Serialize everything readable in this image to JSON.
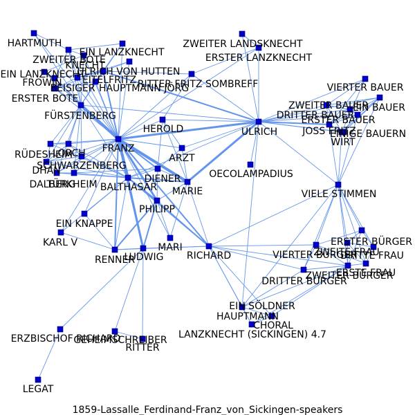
{
  "caption": "1859-Lassalle_Ferdinand-Franz_von_Sickingen-speakers",
  "colors": {
    "node": "#0000cd",
    "edge": "#6495ed",
    "label": "#000000"
  },
  "nodes": [
    {
      "id": "HARTMUTH",
      "label": "HARTMUTH"
    },
    {
      "id": "ZWEITER_BOTE",
      "label": "ZWEITER BOTE"
    },
    {
      "id": "EIN_LANZKNECHT",
      "label": "EIN LANZKNECHT"
    },
    {
      "id": "KNECHT",
      "label": "KNECHT"
    },
    {
      "id": "EIN_LANZKNECHT2",
      "label": "EIN LANZKNECHT"
    },
    {
      "id": "ULRICH_VON_HUTTEN",
      "label": "ULRICH VON HUTTEN"
    },
    {
      "id": "FROWIN",
      "label": "FROWIN"
    },
    {
      "id": "EITELFRITZ",
      "label": "EITELFRITZ"
    },
    {
      "id": "BEISIGER",
      "label": "BEISIGER"
    },
    {
      "id": "HAUPTMANN_JORG",
      "label": "HAUPTMANN JÖRG"
    },
    {
      "id": "RITTER_FRITZ_SOMBREFF",
      "label": "RITTER FRITZ SOMBREFF"
    },
    {
      "id": "ERSTER_BOTE",
      "label": "ERSTER BOTE"
    },
    {
      "id": "FURSTENBERG",
      "label": "FÜRSTENBERG"
    },
    {
      "id": "ZWEITER_LANDSKNECHT",
      "label": "ZWEITER LANDSKNECHT"
    },
    {
      "id": "ERSTER_LANZKNECHT",
      "label": "ERSTER LANZKNECHT"
    },
    {
      "id": "HEROLD",
      "label": "HEROLD"
    },
    {
      "id": "ULRICH",
      "label": "ULRICH"
    },
    {
      "id": "FRANZ",
      "label": "FRANZ"
    },
    {
      "id": "ARZT",
      "label": "ARZT"
    },
    {
      "id": "RUDESHEIM",
      "label": "RÜDESHEIM"
    },
    {
      "id": "LORCH",
      "label": "LORCH"
    },
    {
      "id": "SCHWARZENBERG",
      "label": "SCHWARZENBERG"
    },
    {
      "id": "DHAN",
      "label": "DHAN"
    },
    {
      "id": "DALBERG",
      "label": "DALBERG"
    },
    {
      "id": "TURKHEIM",
      "label": "TÜRKHEIM"
    },
    {
      "id": "BALTHASAR",
      "label": "BALTHASAR"
    },
    {
      "id": "DIENER",
      "label": "DIENER"
    },
    {
      "id": "MARIE",
      "label": "MARIE"
    },
    {
      "id": "OECOLAMPADIUS",
      "label": "OECOLAMPADIUS"
    },
    {
      "id": "PHILIPP",
      "label": "PHILIPP"
    },
    {
      "id": "EIN_KNAPPE",
      "label": "EIN KNAPPE"
    },
    {
      "id": "KARL_V",
      "label": "KARL V"
    },
    {
      "id": "MARI",
      "label": "MARI"
    },
    {
      "id": "RENNER",
      "label": "RENNER"
    },
    {
      "id": "LUDWIG",
      "label": "LUDWIG"
    },
    {
      "id": "RICHARD",
      "label": "RICHARD"
    },
    {
      "id": "VIERTER_BAUER",
      "label": "VIERTER BAUER"
    },
    {
      "id": "ZWEITER_BAUER",
      "label": "ZWEITER BAUER"
    },
    {
      "id": "DRITTER_BAUER",
      "label": "DRITTER BAUER"
    },
    {
      "id": "ERSTER_BAUER",
      "label": "ERSTER BAUER"
    },
    {
      "id": "EIN_BAUER",
      "label": "EIN BAUER"
    },
    {
      "id": "JOSS_FRITZ",
      "label": "JOSS FRITZ"
    },
    {
      "id": "EINIGE_BAUERN",
      "label": "EINIGE BAUERN"
    },
    {
      "id": "WIRT",
      "label": "WIRT"
    },
    {
      "id": "VIELE_STIMMEN",
      "label": "VIELE STIMMEN"
    },
    {
      "id": "ERSTER_BURGER",
      "label": "ERSTER BÜRGER"
    },
    {
      "id": "ZWEITE_FRAU",
      "label": "ZWEITE FRAU"
    },
    {
      "id": "VIERTER_BURGER",
      "label": "VIERTER BÜRGER"
    },
    {
      "id": "DRITTE_FRAU",
      "label": "DRITTE FRAU"
    },
    {
      "id": "ERSTE_FRAU",
      "label": "ERSTE FRAU"
    },
    {
      "id": "ZWEITER_BURGER",
      "label": "ZWEITER BÜRGER"
    },
    {
      "id": "DRITTER_BURGER",
      "label": "DRITTER BÜRGER"
    },
    {
      "id": "EIN_SOLDNER",
      "label": "EIN SÖLDNER"
    },
    {
      "id": "HAUPTMANN",
      "label": "HAUPTMANN"
    },
    {
      "id": "CHORAL",
      "label": "CHORAL"
    },
    {
      "id": "LANZKNECHT_SICKINGEN",
      "label": "LANZKNECHT (SICKINGEN) 4.7"
    },
    {
      "id": "ERZBISCHOF_RICHARD",
      "label": "ERZBISCHOF RICHARD"
    },
    {
      "id": "GEHEIMSCHREIBER",
      "label": "GEHEIMSCHREIBER"
    },
    {
      "id": "RITTER",
      "label": "RITTER"
    },
    {
      "id": "LEGAT",
      "label": "LEGAT"
    }
  ],
  "edges": [
    [
      "FRANZ",
      "BALTHASAR",
      4
    ],
    [
      "FRANZ",
      "MARIE",
      4
    ],
    [
      "FRANZ",
      "ULRICH",
      3
    ],
    [
      "FRANZ",
      "FURSTENBERG",
      4
    ],
    [
      "FRANZ",
      "PHILIPP",
      3
    ],
    [
      "FRANZ",
      "LUDWIG",
      3
    ],
    [
      "FRANZ",
      "RICHARD",
      2
    ],
    [
      "FRANZ",
      "DIENER",
      2
    ],
    [
      "FRANZ",
      "RENNER",
      2
    ],
    [
      "FRANZ",
      "ULRICH_VON_HUTTEN",
      2
    ],
    [
      "FRANZ",
      "EIN_LANZKNECHT",
      1
    ],
    [
      "FRANZ",
      "HARTMUTH",
      1
    ],
    [
      "FRANZ",
      "ZWEITER_BOTE",
      1
    ],
    [
      "FRANZ",
      "KNECHT",
      1
    ],
    [
      "FRANZ",
      "EIN_LANZKNECHT2",
      1
    ],
    [
      "FRANZ",
      "FROWIN",
      1
    ],
    [
      "FRANZ",
      "EITELFRITZ",
      1
    ],
    [
      "FRANZ",
      "BEISIGER",
      1
    ],
    [
      "FRANZ",
      "HAUPTMANN_JORG",
      1
    ],
    [
      "FRANZ",
      "RITTER_FRITZ_SOMBREFF",
      1
    ],
    [
      "FRANZ",
      "ERSTER_BOTE",
      1
    ],
    [
      "FRANZ",
      "HEROLD",
      1
    ],
    [
      "FRANZ",
      "ARZT",
      1
    ],
    [
      "FRANZ",
      "RUDESHEIM",
      1
    ],
    [
      "FRANZ",
      "LORCH",
      1
    ],
    [
      "FRANZ",
      "SCHWARZENBERG",
      1
    ],
    [
      "FRANZ",
      "DHAN",
      1
    ],
    [
      "FRANZ",
      "DALBERG",
      1
    ],
    [
      "FRANZ",
      "TURKHEIM",
      1
    ],
    [
      "FRANZ",
      "EIN_KNAPPE",
      1
    ],
    [
      "FRANZ",
      "KARL_V",
      1
    ],
    [
      "FRANZ",
      "MARI",
      1
    ],
    [
      "FRANZ",
      "ERSTER_LANZKNECHT",
      1
    ],
    [
      "BALTHASAR",
      "MARIE",
      2
    ],
    [
      "BALTHASAR",
      "PHILIPP",
      2
    ],
    [
      "BALTHASAR",
      "LUDWIG",
      2
    ],
    [
      "BALTHASAR",
      "ULRICH",
      1
    ],
    [
      "BALTHASAR",
      "RICHARD",
      2
    ],
    [
      "BALTHASAR",
      "DIENER",
      1
    ],
    [
      "BALTHASAR",
      "RENNER",
      1
    ],
    [
      "BALTHASAR",
      "SCHWARZENBERG",
      1
    ],
    [
      "BALTHASAR",
      "LORCH",
      1
    ],
    [
      "BALTHASAR",
      "DHAN",
      1
    ],
    [
      "BALTHASAR",
      "DALBERG",
      1
    ],
    [
      "BALTHASAR",
      "TURKHEIM",
      1
    ],
    [
      "BALTHASAR",
      "RUDESHEIM",
      1
    ],
    [
      "BALTHASAR",
      "EIN_KNAPPE",
      1
    ],
    [
      "BALTHASAR",
      "KARL_V",
      1
    ],
    [
      "MARIE",
      "ULRICH",
      3
    ],
    [
      "MARIE",
      "DIENER",
      1
    ],
    [
      "MARIE",
      "PHILIPP",
      1
    ],
    [
      "MARIE",
      "MARI",
      1
    ],
    [
      "MARIE",
      "ARZT",
      1
    ],
    [
      "MARIE",
      "HEROLD",
      1
    ],
    [
      "MARIE",
      "RICHARD",
      1
    ],
    [
      "PHILIPP",
      "LUDWIG",
      2
    ],
    [
      "PHILIPP",
      "RENNER",
      2
    ],
    [
      "PHILIPP",
      "RICHARD",
      1
    ],
    [
      "PHILIPP",
      "DIENER",
      1
    ],
    [
      "PHILIPP",
      "MARI",
      1
    ],
    [
      "LUDWIG",
      "RICHARD",
      1
    ],
    [
      "LUDWIG",
      "RENNER",
      1
    ],
    [
      "LUDWIG",
      "GEHEIMSCHREIBER",
      1
    ],
    [
      "LUDWIG",
      "RITTER",
      1
    ],
    [
      "LUDWIG",
      "ERZBISCHOF_RICHARD",
      1
    ],
    [
      "RICHARD",
      "VIELE_STIMMEN",
      1
    ],
    [
      "RICHARD",
      "ZWEITER_BURGER",
      1
    ],
    [
      "RICHARD",
      "EIN_SOLDNER",
      1
    ],
    [
      "RICHARD",
      "HAUPTMANN",
      1
    ],
    [
      "RICHARD",
      "CHORAL",
      1
    ],
    [
      "RICHARD",
      "DRITTER_BURGER",
      1
    ],
    [
      "RICHARD",
      "RENNER",
      1
    ],
    [
      "RICHARD",
      "VIERTER_BURGER",
      1
    ],
    [
      "ULRICH",
      "ULRICH_VON_HUTTEN",
      2
    ],
    [
      "ULRICH",
      "FURSTENBERG",
      1
    ],
    [
      "ULRICH",
      "OECOLAMPADIUS",
      1
    ],
    [
      "ULRICH",
      "HEROLD",
      1
    ],
    [
      "ULRICH",
      "ERSTER_LANZKNECHT",
      1
    ],
    [
      "ULRICH",
      "ZWEITER_LANDSKNECHT",
      1
    ],
    [
      "ULRICH",
      "RITTER_FRITZ_SOMBREFF",
      1
    ],
    [
      "ULRICH",
      "VIELE_STIMMEN",
      1
    ],
    [
      "ULRICH",
      "JOSS_FRITZ",
      2
    ],
    [
      "ULRICH",
      "WIRT",
      1
    ],
    [
      "ULRICH",
      "VIERTER_BAUER",
      1
    ],
    [
      "ULRICH",
      "ZWEITER_BAUER",
      1
    ],
    [
      "ULRICH",
      "DRITTER_BAUER",
      1
    ],
    [
      "ULRICH",
      "ERSTER_BAUER",
      1
    ],
    [
      "ULRICH",
      "EIN_BAUER",
      1
    ],
    [
      "ULRICH",
      "EINIGE_BAUERN",
      1
    ],
    [
      "ULRICH",
      "ARZT",
      1
    ],
    [
      "ULRICH",
      "EIN_SOLDNER",
      1
    ],
    [
      "FURSTENBERG",
      "HARTMUTH",
      1
    ],
    [
      "FURSTENBERG",
      "ZWEITER_BOTE",
      1
    ],
    [
      "FURSTENBERG",
      "EIN_LANZKNECHT",
      1
    ],
    [
      "FURSTENBERG",
      "KNECHT",
      1
    ],
    [
      "FURSTENBERG",
      "FROWIN",
      1
    ],
    [
      "FURSTENBERG",
      "EITELFRITZ",
      1
    ],
    [
      "FURSTENBERG",
      "BEISIGER",
      1
    ],
    [
      "FURSTENBERG",
      "ERSTER_BOTE",
      1
    ],
    [
      "FURSTENBERG",
      "ULRICH_VON_HUTTEN",
      1
    ],
    [
      "FURSTENBERG",
      "RUDESHEIM",
      1
    ],
    [
      "FURSTENBERG",
      "LORCH",
      1
    ],
    [
      "FURSTENBERG",
      "SCHWARZENBERG",
      1
    ],
    [
      "FURSTENBERG",
      "DHAN",
      1
    ],
    [
      "FURSTENBERG",
      "DALBERG",
      1
    ],
    [
      "FURSTENBERG",
      "TURKHEIM",
      1
    ],
    [
      "FURSTENBERG",
      "BALTHASAR",
      1
    ],
    [
      "FURSTENBERG",
      "EIN_LANZKNECHT2",
      1
    ],
    [
      "ULRICH_VON_HUTTEN",
      "HAUPTMANN_JORG",
      1
    ],
    [
      "ULRICH_VON_HUTTEN",
      "RITTER_FRITZ_SOMBREFF",
      1
    ],
    [
      "ULRICH_VON_HUTTEN",
      "EITELFRITZ",
      1
    ],
    [
      "ULRICH_VON_HUTTEN",
      "BEISIGER",
      1
    ],
    [
      "ULRICH_VON_HUTTEN",
      "FROWIN",
      1
    ],
    [
      "ULRICH_VON_HUTTEN",
      "EIN_LANZKNECHT",
      1
    ],
    [
      "HARTMUTH",
      "ZWEITER_BOTE",
      1
    ],
    [
      "ZWEITER_BOTE",
      "KNECHT",
      1
    ],
    [
      "ZWEITER_BOTE",
      "FROWIN",
      1
    ],
    [
      "ZWEITER_BOTE",
      "EITELFRITZ",
      1
    ],
    [
      "KNECHT",
      "EIN_LANZKNECHT2",
      1
    ],
    [
      "FROWIN",
      "EIN_LANZKNECHT2",
      1
    ],
    [
      "FROWIN",
      "BEISIGER",
      1
    ],
    [
      "BEISIGER",
      "ERSTER_BOTE",
      1
    ],
    [
      "BEISIGER",
      "EITELFRITZ",
      1
    ],
    [
      "EITELFRITZ",
      "HAUPTMANN_JORG",
      1
    ],
    [
      "EIN_LANZKNECHT",
      "ZWEITER_BOTE",
      1
    ],
    [
      "EIN_LANZKNECHT",
      "ERSTER_BOTE",
      1
    ],
    [
      "RITTER_FRITZ_SOMBREFF",
      "ERSTER_LANZKNECHT",
      1
    ],
    [
      "RITTER_FRITZ_SOMBREFF",
      "HEROLD",
      1
    ],
    [
      "ERSTER_LANZKNECHT",
      "ZWEITER_LANDSKNECHT",
      1
    ],
    [
      "HEROLD",
      "ARZT",
      1
    ],
    [
      "HEROLD",
      "DIENER",
      1
    ],
    [
      "LORCH",
      "SCHWARZENBERG",
      1
    ],
    [
      "LORCH",
      "DHAN",
      1
    ],
    [
      "LORCH",
      "RUDESHEIM",
      1
    ],
    [
      "SCHWARZENBERG",
      "DHAN",
      1
    ],
    [
      "SCHWARZENBERG",
      "DALBERG",
      1
    ],
    [
      "SCHWARZENBERG",
      "TURKHEIM",
      1
    ],
    [
      "DHAN",
      "DALBERG",
      1
    ],
    [
      "DALBERG",
      "TURKHEIM",
      1
    ],
    [
      "RUDESHEIM",
      "DHAN",
      1
    ],
    [
      "DIENER",
      "TURKHEIM",
      1
    ],
    [
      "DIENER",
      "ARZT",
      1
    ],
    [
      "RENNER",
      "EIN_KNAPPE",
      1
    ],
    [
      "RENNER",
      "KARL_V",
      1
    ],
    [
      "JOSS_FRITZ",
      "WIRT",
      1
    ],
    [
      "JOSS_FRITZ",
      "VIERTER_BAUER",
      1
    ],
    [
      "JOSS_FRITZ",
      "ZWEITER_BAUER",
      1
    ],
    [
      "JOSS_FRITZ",
      "DRITTER_BAUER",
      1
    ],
    [
      "JOSS_FRITZ",
      "ERSTER_BAUER",
      1
    ],
    [
      "JOSS_FRITZ",
      "EIN_BAUER",
      1
    ],
    [
      "JOSS_FRITZ",
      "EINIGE_BAUERN",
      1
    ],
    [
      "JOSS_FRITZ",
      "VIELE_STIMMEN",
      1
    ],
    [
      "WIRT",
      "VIERTER_BAUER",
      1
    ],
    [
      "WIRT",
      "ZWEITER_BAUER",
      1
    ],
    [
      "WIRT",
      "ERSTER_BAUER",
      1
    ],
    [
      "WIRT",
      "EIN_BAUER",
      1
    ],
    [
      "WIRT",
      "EINIGE_BAUERN",
      1
    ],
    [
      "WIRT",
      "VIELE_STIMMEN",
      1
    ],
    [
      "VIERTER_BAUER",
      "ZWEITER_BAUER",
      1
    ],
    [
      "ZWEITER_BAUER",
      "DRITTER_BAUER",
      1
    ],
    [
      "DRITTER_BAUER",
      "ERSTER_BAUER",
      1
    ],
    [
      "ERSTER_BAUER",
      "EIN_BAUER",
      1
    ],
    [
      "EIN_BAUER",
      "EINIGE_BAUERN",
      1
    ],
    [
      "ZWEITER_BAUER",
      "EIN_BAUER",
      1
    ],
    [
      "VIELE_STIMMEN",
      "EIN_BAUER",
      1
    ],
    [
      "VIELE_STIMMEN",
      "ERSTER_BAUER",
      1
    ],
    [
      "VIELE_STIMMEN",
      "ERSTER_BURGER",
      1
    ],
    [
      "VIELE_STIMMEN",
      "ZWEITE_FRAU",
      1
    ],
    [
      "VIELE_STIMMEN",
      "VIERTER_BURGER",
      1
    ],
    [
      "VIELE_STIMMEN",
      "DRITTE_FRAU",
      1
    ],
    [
      "VIELE_STIMMEN",
      "ERSTE_FRAU",
      1
    ],
    [
      "VIELE_STIMMEN",
      "ZWEITER_BURGER",
      1
    ],
    [
      "VIELE_STIMMEN",
      "DRITTER_BURGER",
      1
    ],
    [
      "VIELE_STIMMEN",
      "EIN_SOLDNER",
      1
    ],
    [
      "ERSTER_BURGER",
      "ZWEITE_FRAU",
      1
    ],
    [
      "ERSTER_BURGER",
      "DRITTE_FRAU",
      1
    ],
    [
      "ERSTER_BURGER",
      "VIERTER_BURGER",
      1
    ],
    [
      "ERSTER_BURGER",
      "ZWEITER_BURGER",
      1
    ],
    [
      "ZWEITE_FRAU",
      "DRITTE_FRAU",
      1
    ],
    [
      "ZWEITE_FRAU",
      "ERSTE_FRAU",
      1
    ],
    [
      "ZWEITE_FRAU",
      "ZWEITER_BURGER",
      1
    ],
    [
      "VIERTER_BURGER",
      "ZWEITER_BURGER",
      1
    ],
    [
      "VIERTER_BURGER",
      "ERSTE_FRAU",
      1
    ],
    [
      "DRITTE_FRAU",
      "ERSTE_FRAU",
      1
    ],
    [
      "ERSTE_FRAU",
      "ZWEITER_BURGER",
      1
    ],
    [
      "ZWEITER_BURGER",
      "DRITTER_BURGER",
      1
    ],
    [
      "ZWEITER_BURGER",
      "EIN_SOLDNER",
      1
    ],
    [
      "DRITTER_BURGER",
      "EIN_SOLDNER",
      1
    ],
    [
      "DRITTER_BURGER",
      "VIERTER_BURGER",
      1
    ],
    [
      "EIN_SOLDNER",
      "HAUPTMANN",
      1
    ],
    [
      "EIN_SOLDNER",
      "CHORAL",
      1
    ],
    [
      "HAUPTMANN",
      "CHORAL",
      1
    ],
    [
      "ZWEITER_BURGER",
      "HAUPTMANN",
      1
    ],
    [
      "ZWEITER_BURGER",
      "CHORAL",
      1
    ],
    [
      "ERZBISCHOF_RICHARD",
      "LEGAT",
      1
    ],
    [
      "GEHEIMSCHREIBER",
      "RITTER",
      1
    ]
  ]
}
